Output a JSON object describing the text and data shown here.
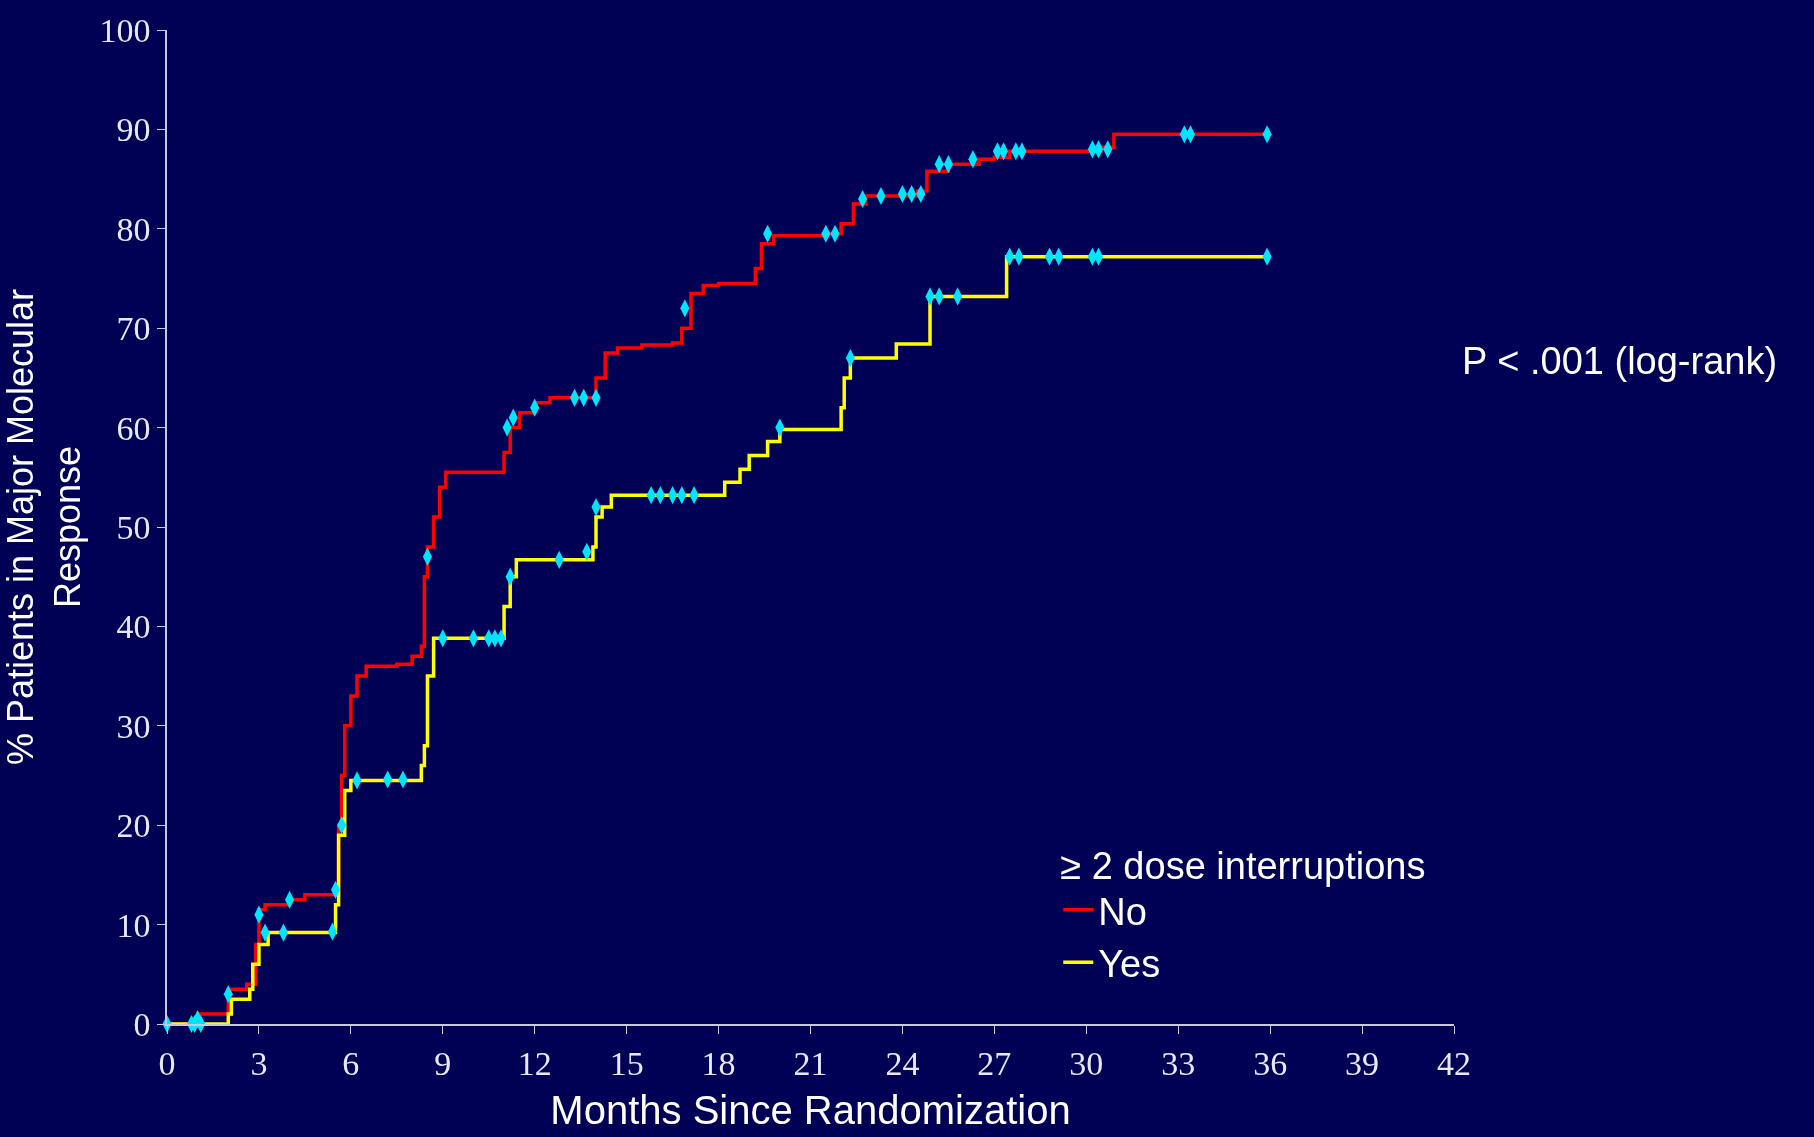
{
  "chart_data": {
    "type": "step",
    "xlabel": "Months Since Randomization",
    "ylabel": "% Patients in Major Molecular Response",
    "legend_title": "≥ 2 dose interruptions",
    "annotations": [
      "P < .001 (log-rank)"
    ],
    "xlim": [
      0,
      42
    ],
    "ylim": [
      0,
      100
    ],
    "xticks": [
      0,
      3,
      6,
      9,
      12,
      15,
      18,
      21,
      24,
      27,
      30,
      33,
      36,
      39,
      42
    ],
    "yticks": [
      0,
      10,
      20,
      30,
      40,
      50,
      60,
      70,
      80,
      90,
      100
    ],
    "grid": false,
    "legend": "bottom right",
    "series": [
      {
        "name": "No",
        "color": "#ff0000",
        "line_style": "solid",
        "x": [
          0,
          1.0,
          2.0,
          2.6,
          2.9,
          3.0,
          3.2,
          4.0,
          4.5,
          5.5,
          5.6,
          5.7,
          5.8,
          6.0,
          6.2,
          6.5,
          7.5,
          8.0,
          8.3,
          8.4,
          8.5,
          8.7,
          8.9,
          9.1,
          10.8,
          11.0,
          11.2,
          11.5,
          12.0,
          12.5,
          13.8,
          14.0,
          14.3,
          14.7,
          15.5,
          16.5,
          16.8,
          17.1,
          17.5,
          18.0,
          19.2,
          19.4,
          19.8,
          21.5,
          22.0,
          22.4,
          22.8,
          24.5,
          24.8,
          25.5,
          26.5,
          27.0,
          27.5,
          30.5,
          30.9,
          35.9
        ],
        "values": [
          0,
          1,
          3.5,
          4,
          8,
          11.5,
          12,
          12.5,
          13,
          13,
          20,
          25,
          30,
          33,
          35,
          36,
          36.2,
          37,
          38,
          45,
          48,
          51,
          54,
          55.5,
          55.5,
          57.5,
          60,
          61.5,
          62.5,
          63,
          63,
          65,
          67.5,
          68,
          68.3,
          68.5,
          70,
          73.5,
          74.3,
          74.5,
          76,
          78.5,
          79.3,
          79.5,
          80.5,
          82.5,
          83.3,
          83.8,
          85.8,
          86.5,
          87,
          87.2,
          87.8,
          88.2,
          89.5,
          89.5
        ]
      },
      {
        "name": "Yes",
        "color": "#ffff00",
        "line_style": "solid",
        "x": [
          0,
          2.0,
          2.1,
          2.7,
          2.8,
          3.0,
          3.3,
          5.4,
          5.5,
          5.6,
          5.8,
          6.0,
          8.2,
          8.3,
          8.4,
          8.5,
          8.7,
          10.9,
          11.0,
          11.2,
          11.4,
          13.8,
          13.9,
          14.0,
          14.2,
          14.5,
          18.0,
          18.2,
          18.7,
          19.0,
          19.6,
          20.0,
          21.9,
          22.0,
          22.1,
          22.3,
          23.8,
          24.9,
          27.4,
          35.9
        ],
        "values": [
          0,
          1,
          2.5,
          3.5,
          6,
          8,
          9.2,
          9.2,
          12,
          19,
          23.5,
          24.5,
          24.5,
          26,
          28,
          35,
          38.8,
          38.8,
          42,
          45,
          46.7,
          46.7,
          48,
          51,
          52,
          53.2,
          53.2,
          54.5,
          55.8,
          57.2,
          58.6,
          59.8,
          59.8,
          62,
          65,
          67,
          68.4,
          73.2,
          77.2,
          77.2
        ]
      },
      {
        "type": "scatter",
        "color": "#00e5ff",
        "x": [
          0,
          0.8,
          1.0,
          2.0,
          3.0,
          4.0,
          5.5,
          8.5,
          11.1,
          11.3,
          12.0,
          13.3,
          13.6,
          14.0,
          16.9,
          19.6,
          21.5,
          21.8,
          22.7,
          23.3,
          24.0,
          24.3,
          24.6,
          25.2,
          25.5,
          26.3,
          27.1,
          27.3,
          27.7,
          27.9,
          30.2,
          30.4,
          30.7,
          33.2,
          33.4,
          35.9
        ],
        "values": [
          0,
          0,
          0.5,
          3,
          11,
          12.5,
          13.5,
          47,
          60,
          61,
          62,
          63,
          63,
          63,
          72,
          79.5,
          79.5,
          79.5,
          83,
          83.3,
          83.5,
          83.5,
          83.5,
          86.5,
          86.5,
          87,
          87.8,
          87.8,
          87.8,
          87.8,
          88,
          88,
          88,
          89.5,
          89.5,
          89.5
        ]
      },
      {
        "type": "scatter",
        "color": "#00e5ff",
        "x": [
          0.9,
          1.1,
          3.2,
          3.8,
          5.4,
          5.7,
          6.2,
          7.2,
          7.7,
          9.0,
          10.0,
          10.5,
          10.7,
          10.9,
          11.2,
          12.8,
          13.7,
          14.0,
          15.8,
          16.1,
          16.5,
          16.8,
          17.2,
          20.0,
          22.3,
          24.9,
          25.2,
          25.8,
          27.5,
          27.8,
          28.8,
          29.1,
          30.2,
          30.4,
          35.9
        ],
        "values": [
          0,
          0,
          9.2,
          9.2,
          9.3,
          20,
          24.5,
          24.6,
          24.6,
          38.8,
          38.8,
          38.8,
          38.8,
          38.8,
          45,
          46.7,
          47.5,
          52,
          53.2,
          53.2,
          53.2,
          53.2,
          53.2,
          60,
          67,
          73.2,
          73.2,
          73.2,
          77.2,
          77.2,
          77.2,
          77.2,
          77.2,
          77.2,
          77.2
        ]
      }
    ]
  }
}
